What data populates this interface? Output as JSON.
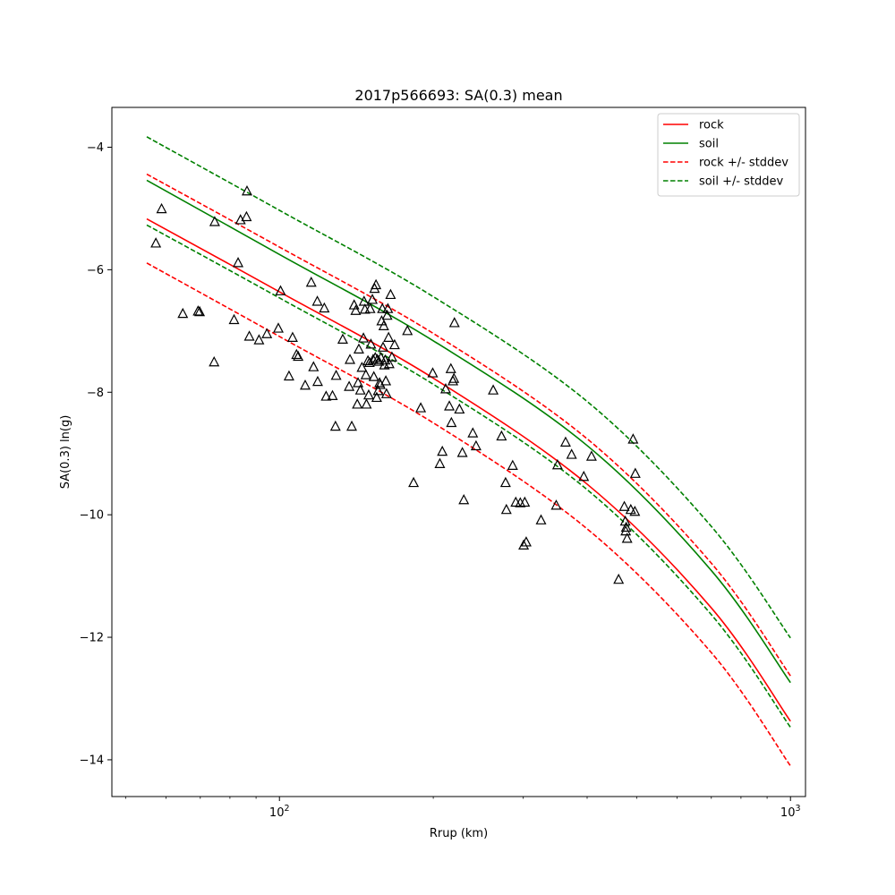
{
  "chart_data": {
    "type": "scatter",
    "title": "2017p566693: SA(0.3) mean",
    "xlabel": "Rrup (km)",
    "ylabel": "SA(0.3) ln(g)",
    "xscale": "log",
    "xlim": [
      47,
      1070
    ],
    "ylim": [
      -14.6,
      -3.35
    ],
    "xticks": [
      {
        "value": 100,
        "base": "10",
        "exp": "2"
      },
      {
        "value": 1000,
        "base": "10",
        "exp": "3"
      }
    ],
    "yticks": [
      -14,
      -12,
      -10,
      -8,
      -6,
      -4
    ],
    "grid": false,
    "legend_position": "top-right",
    "colors": {
      "rock": "#ff0000",
      "soil": "#008000",
      "observed": "#000000"
    },
    "series": [
      {
        "name": "rock",
        "style": "solid",
        "color": "#ff0000",
        "x": [
          55,
          100,
          200,
          400,
          700,
          1000
        ],
        "y": [
          -5.17,
          -6.36,
          -7.77,
          -9.5,
          -11.52,
          -13.37
        ]
      },
      {
        "name": "soil",
        "style": "solid",
        "color": "#008000",
        "x": [
          55,
          100,
          200,
          400,
          700,
          1000
        ],
        "y": [
          -4.54,
          -5.75,
          -7.16,
          -8.87,
          -10.91,
          -12.74
        ]
      },
      {
        "name": "rock +/- stddev",
        "style": "dashed",
        "color": "#ff0000",
        "x": [
          55,
          100,
          200,
          400,
          700,
          1000
        ],
        "y": [
          -4.44,
          -5.63,
          -7.04,
          -8.76,
          -10.79,
          -12.63
        ]
      },
      {
        "name": "rock +/- stddev",
        "style": "dashed",
        "legend": false,
        "color": "#ff0000",
        "x": [
          55,
          100,
          200,
          400,
          700,
          1000
        ],
        "y": [
          -5.89,
          -7.09,
          -8.5,
          -10.23,
          -12.25,
          -14.1
        ]
      },
      {
        "name": "soil +/- stddev",
        "style": "dashed",
        "color": "#008000",
        "x": [
          55,
          100,
          200,
          400,
          700,
          1000
        ],
        "y": [
          -3.83,
          -5.03,
          -6.44,
          -8.15,
          -10.19,
          -12.01
        ]
      },
      {
        "name": "soil +/- stddev",
        "style": "dashed",
        "legend": false,
        "color": "#008000",
        "x": [
          55,
          100,
          200,
          400,
          700,
          1000
        ],
        "y": [
          -5.27,
          -6.46,
          -7.87,
          -9.59,
          -11.63,
          -13.47
        ]
      }
    ],
    "observations": [
      [
        57.3,
        -5.57
      ],
      [
        58.8,
        -5.01
      ],
      [
        64.7,
        -6.72
      ],
      [
        69.3,
        -6.68
      ],
      [
        69.8,
        -6.69
      ],
      [
        74.5,
        -7.51
      ],
      [
        74.7,
        -5.22
      ],
      [
        81.5,
        -6.82
      ],
      [
        83.0,
        -5.89
      ],
      [
        83.9,
        -5.19
      ],
      [
        86.2,
        -5.14
      ],
      [
        86.4,
        -4.72
      ],
      [
        87.3,
        -7.09
      ],
      [
        91.2,
        -7.15
      ],
      [
        94.5,
        -7.05
      ],
      [
        99.5,
        -6.96
      ],
      [
        100.5,
        -6.35
      ],
      [
        104.4,
        -7.74
      ],
      [
        106.1,
        -7.11
      ],
      [
        108.0,
        -7.39
      ],
      [
        108.8,
        -7.42
      ],
      [
        112.3,
        -7.89
      ],
      [
        115.4,
        -6.21
      ],
      [
        116.6,
        -7.59
      ],
      [
        118.6,
        -6.52
      ],
      [
        118.8,
        -7.83
      ],
      [
        122.4,
        -6.63
      ],
      [
        123.4,
        -8.07
      ],
      [
        127.0,
        -8.06
      ],
      [
        128.7,
        -8.56
      ],
      [
        129.1,
        -7.73
      ],
      [
        133.0,
        -7.14
      ],
      [
        136.9,
        -7.91
      ],
      [
        137.4,
        -7.47
      ],
      [
        138.5,
        -8.56
      ],
      [
        140.0,
        -6.58
      ],
      [
        141.0,
        -6.67
      ],
      [
        142.0,
        -8.2
      ],
      [
        142.5,
        -7.85
      ],
      [
        143.0,
        -7.3
      ],
      [
        144.0,
        -7.97
      ],
      [
        145.0,
        -7.6
      ],
      [
        146.0,
        -7.12
      ],
      [
        146.4,
        -6.52
      ],
      [
        147.0,
        -6.65
      ],
      [
        147.6,
        -7.72
      ],
      [
        148.0,
        -8.2
      ],
      [
        149.0,
        -7.49
      ],
      [
        149.5,
        -8.05
      ],
      [
        150.0,
        -7.52
      ],
      [
        150.5,
        -6.64
      ],
      [
        151.0,
        -7.22
      ],
      [
        152.0,
        -6.49
      ],
      [
        152.5,
        -7.47
      ],
      [
        153.0,
        -7.75
      ],
      [
        153.5,
        -6.31
      ],
      [
        154.0,
        -7.44
      ],
      [
        154.5,
        -6.25
      ],
      [
        155.0,
        -8.09
      ],
      [
        155.5,
        -7.47
      ],
      [
        156.0,
        -7.98
      ],
      [
        156.5,
        -7.5
      ],
      [
        157.0,
        -7.85
      ],
      [
        157.5,
        -7.88
      ],
      [
        158.0,
        -7.44
      ],
      [
        158.5,
        -6.84
      ],
      [
        159.0,
        -6.64
      ],
      [
        159.5,
        -7.27
      ],
      [
        160.0,
        -6.92
      ],
      [
        160.5,
        -7.56
      ],
      [
        161.0,
        -7.48
      ],
      [
        161.5,
        -7.82
      ],
      [
        162.0,
        -8.03
      ],
      [
        162.5,
        -6.75
      ],
      [
        163.0,
        -6.64
      ],
      [
        163.5,
        -7.11
      ],
      [
        164.0,
        -7.54
      ],
      [
        165.0,
        -6.41
      ],
      [
        166.0,
        -7.43
      ],
      [
        168.0,
        -7.23
      ],
      [
        178.0,
        -7.0
      ],
      [
        183.0,
        -9.48
      ],
      [
        189.0,
        -8.26
      ],
      [
        199.5,
        -7.69
      ],
      [
        206.0,
        -9.17
      ],
      [
        208.3,
        -8.97
      ],
      [
        211.5,
        -7.95
      ],
      [
        215.0,
        -8.23
      ],
      [
        216.5,
        -7.62
      ],
      [
        217.0,
        -8.5
      ],
      [
        218.5,
        -7.82
      ],
      [
        219.5,
        -7.78
      ],
      [
        220.0,
        -6.87
      ],
      [
        225.0,
        -8.28
      ],
      [
        228.0,
        -8.99
      ],
      [
        229.5,
        -9.76
      ],
      [
        239.0,
        -8.67
      ],
      [
        242.5,
        -8.88
      ],
      [
        262.0,
        -7.97
      ],
      [
        272.0,
        -8.72
      ],
      [
        277.0,
        -9.48
      ],
      [
        278.0,
        -9.92
      ],
      [
        286.0,
        -9.2
      ],
      [
        290.0,
        -9.8
      ],
      [
        296.0,
        -9.81
      ],
      [
        300.5,
        -10.5
      ],
      [
        302.0,
        -9.8
      ],
      [
        304.0,
        -10.45
      ],
      [
        325.0,
        -10.09
      ],
      [
        348.0,
        -9.85
      ],
      [
        350.0,
        -9.19
      ],
      [
        363.0,
        -8.82
      ],
      [
        373.0,
        -9.02
      ],
      [
        394.0,
        -9.38
      ],
      [
        408.0,
        -9.05
      ],
      [
        461.0,
        -11.06
      ],
      [
        473.0,
        -9.87
      ],
      [
        475.0,
        -10.11
      ],
      [
        476.0,
        -10.27
      ],
      [
        477.0,
        -10.21
      ],
      [
        479.0,
        -10.39
      ],
      [
        487.0,
        -9.92
      ],
      [
        492.0,
        -8.77
      ],
      [
        496.0,
        -9.95
      ],
      [
        497.0,
        -9.33
      ]
    ]
  }
}
